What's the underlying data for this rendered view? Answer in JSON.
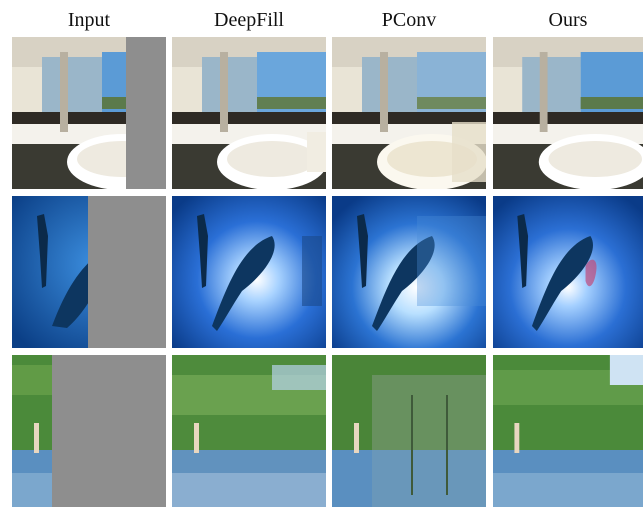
{
  "headers": [
    "Input",
    "DeepFill",
    "PConv",
    "Ours"
  ],
  "rows": [
    {
      "scene": "bathroom"
    },
    {
      "scene": "underwater-dolphin"
    },
    {
      "scene": "lake-trees"
    }
  ]
}
